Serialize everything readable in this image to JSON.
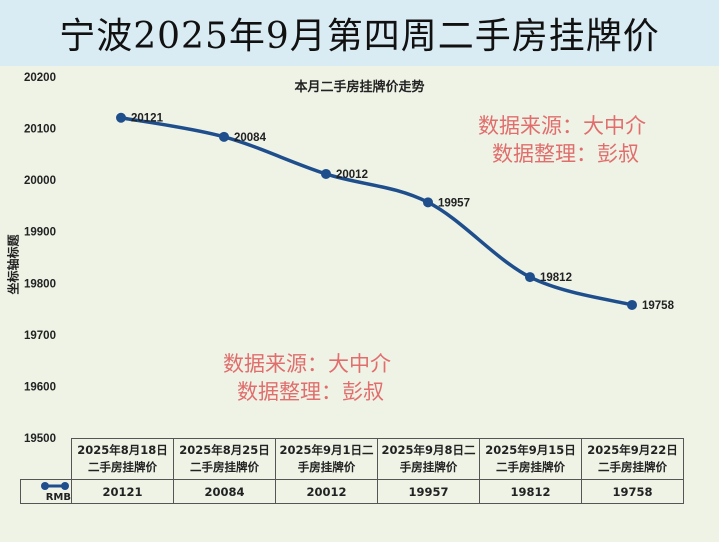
{
  "header": {
    "title": "宁波2025年9月第四周二手房挂牌价"
  },
  "watermarks": [
    {
      "line1": "数据来源：大中介",
      "line2": "数据整理：彭叔"
    },
    {
      "line1": "数据来源：大中介",
      "line2": "数据整理：彭叔"
    }
  ],
  "colors": {
    "series": "#1f4e8c",
    "header_bg": "#d9ebf3",
    "chart_bg": "#eef3e6",
    "watermark": "#e06060"
  },
  "chart_data": {
    "type": "line",
    "title": "本月二手房挂牌价走势",
    "ylabel": "坐标轴标题",
    "xlabel": "",
    "ylim": [
      19500,
      20200
    ],
    "yticks": [
      "20200",
      "20100",
      "20000",
      "19900",
      "19800",
      "19700",
      "19600",
      "19500"
    ],
    "categories": [
      "2025年8月18日二手房挂牌价",
      "2025年8月25日二手房挂牌价",
      "2025年9月1日二手房挂牌价",
      "2025年9月8日二手房挂牌价",
      "2025年9月15日二手房挂牌价",
      "2025年9月22日二手房挂牌价"
    ],
    "category_lines": [
      [
        "2025年8月18日",
        "二手房挂牌价"
      ],
      [
        "2025年8月25日",
        "二手房挂牌价"
      ],
      [
        "2025年9月1日二",
        "手房挂牌价"
      ],
      [
        "2025年9月8日二",
        "手房挂牌价"
      ],
      [
        "2025年9月15日",
        "二手房挂牌价"
      ],
      [
        "2025年9月22日",
        "二手房挂牌价"
      ]
    ],
    "series": [
      {
        "name": "RMB",
        "values": [
          20121,
          20084,
          20012,
          19957,
          19812,
          19758
        ]
      }
    ],
    "value_labels": [
      "20121",
      "20084",
      "20012",
      "19957",
      "19812",
      "19758"
    ],
    "grid": false,
    "legend": "data-table"
  }
}
